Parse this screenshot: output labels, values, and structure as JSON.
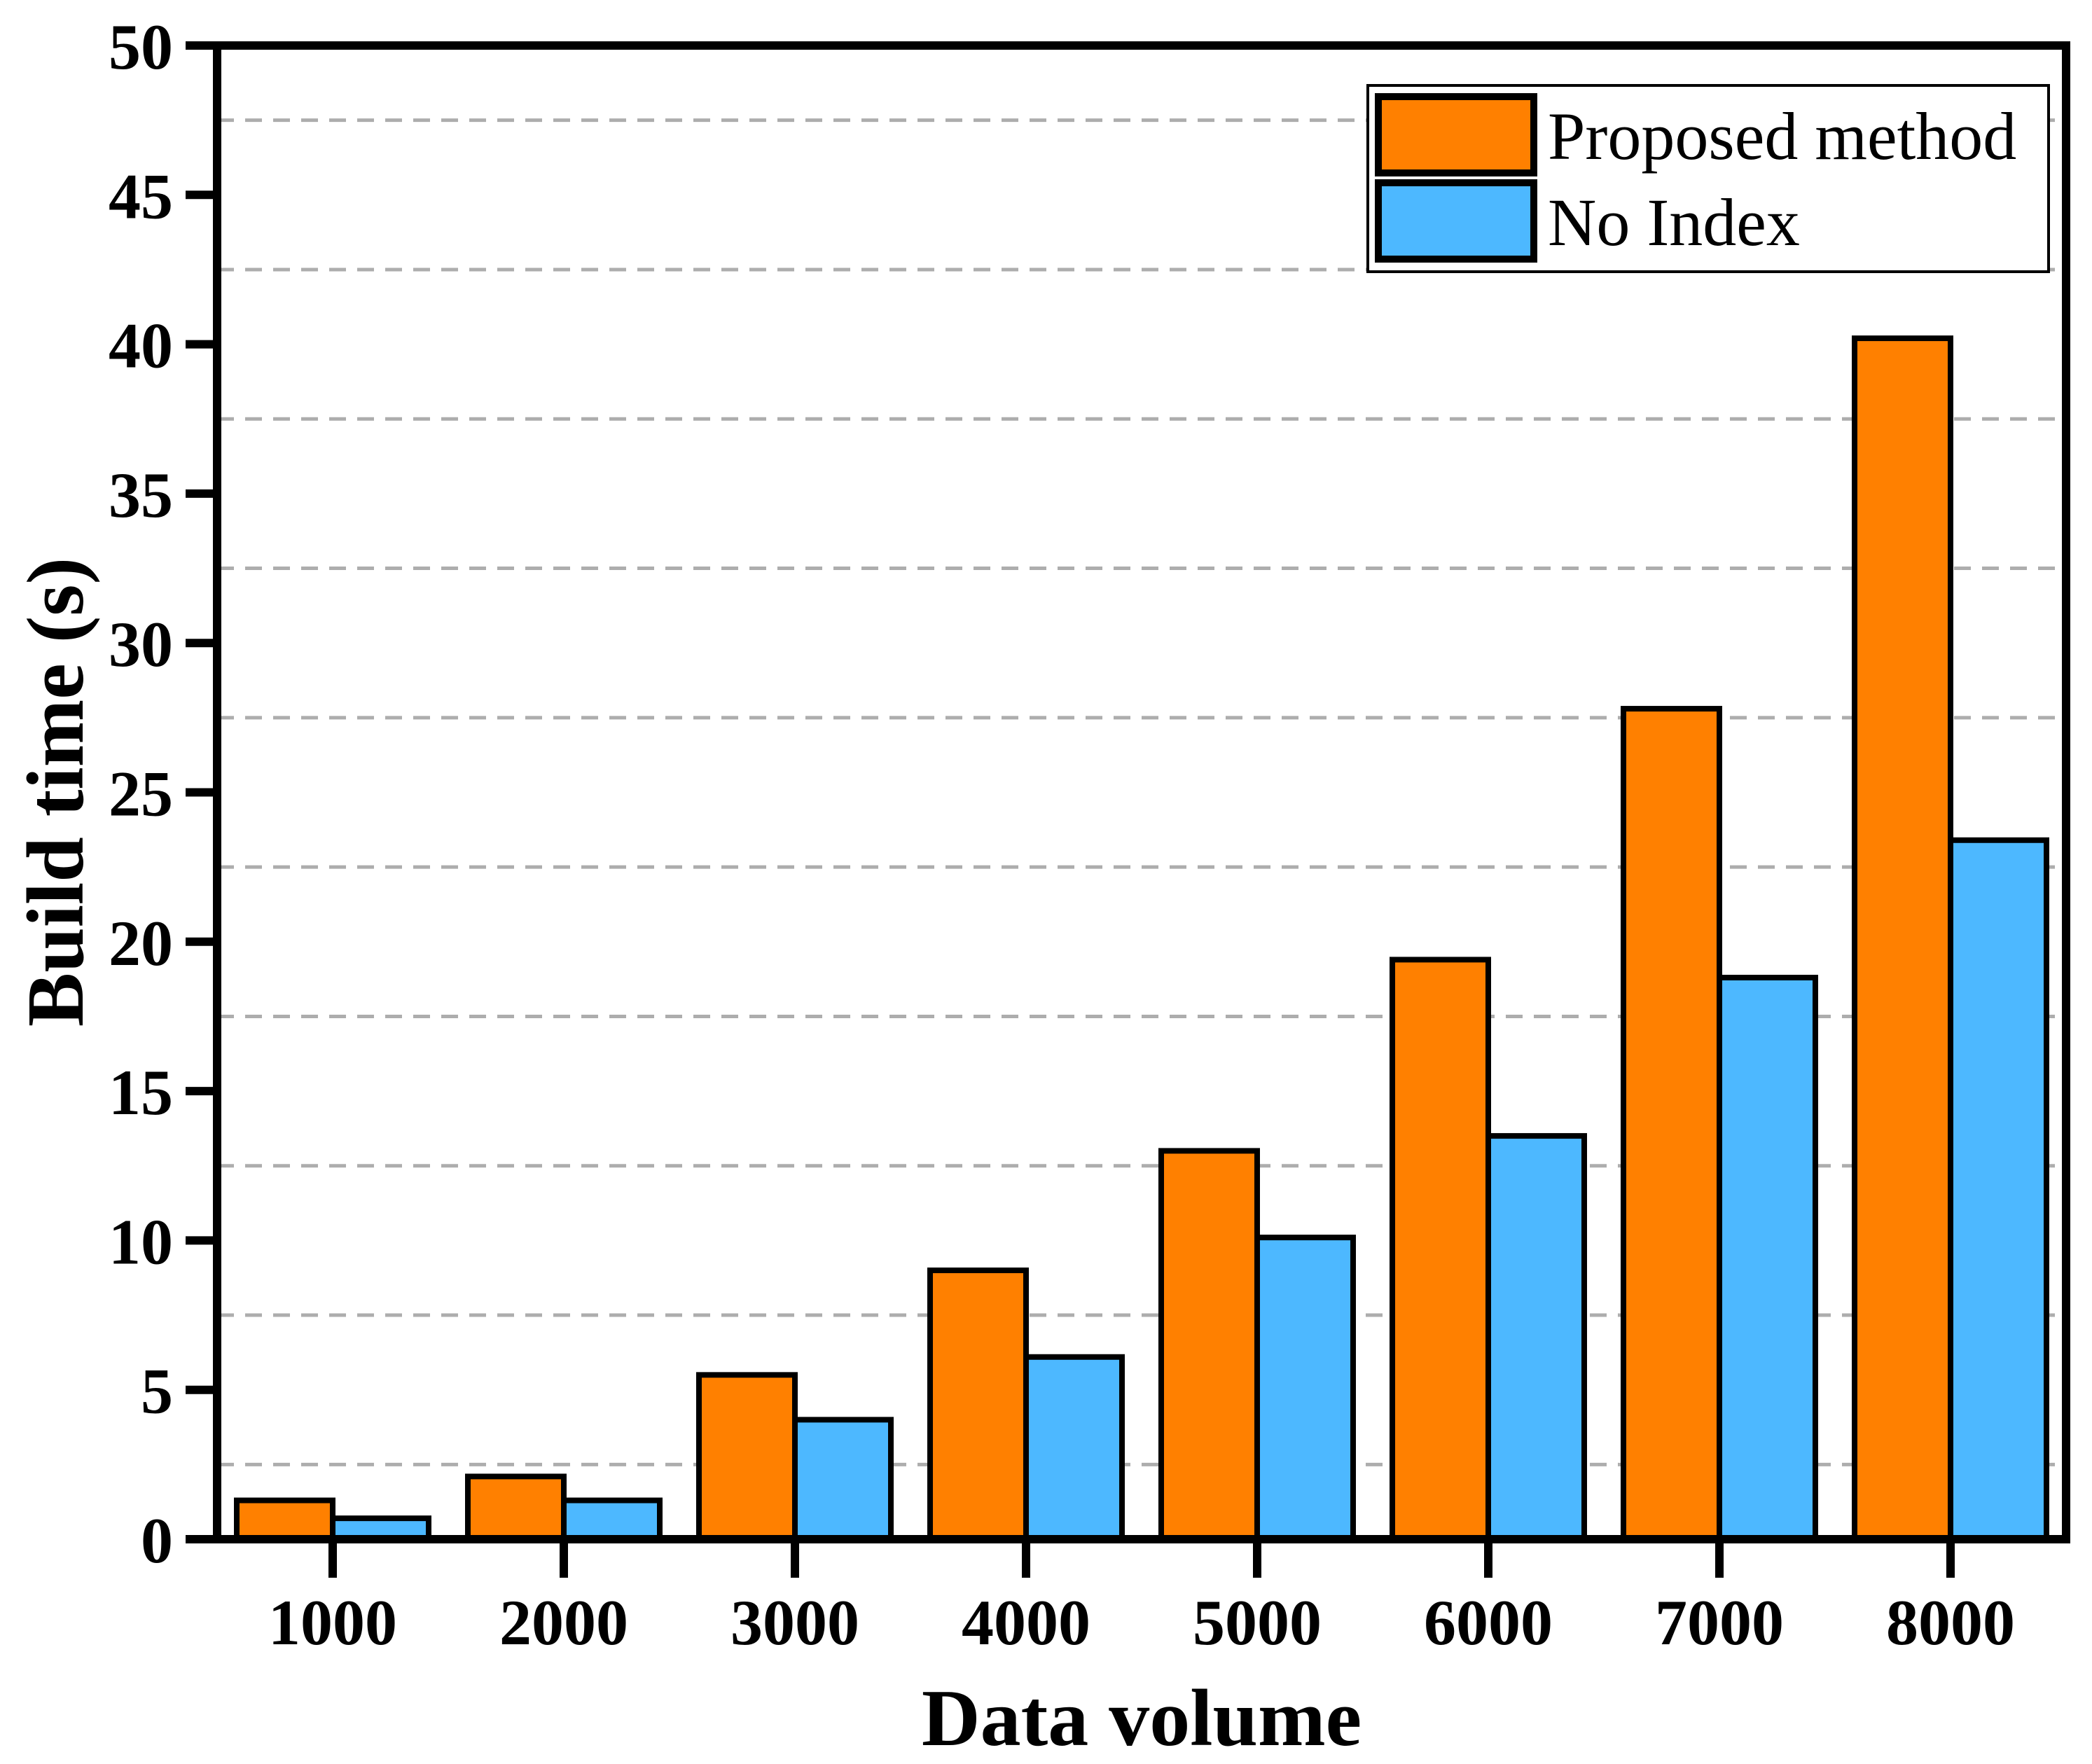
{
  "chart_data": {
    "type": "bar",
    "title": "",
    "xlabel": "Data volume",
    "ylabel": "Build time (s)",
    "categories": [
      "1000",
      "2000",
      "3000",
      "4000",
      "5000",
      "6000",
      "7000",
      "8000"
    ],
    "series": [
      {
        "name": "Proposed method",
        "color": "#FF8000",
        "values": [
          1.3,
          2.1,
          5.5,
          9.0,
          13.0,
          19.4,
          27.8,
          40.2
        ]
      },
      {
        "name": "No Index",
        "color": "#4DB8FF",
        "values": [
          0.7,
          1.3,
          4.0,
          6.1,
          10.1,
          13.5,
          18.8,
          23.4
        ]
      }
    ],
    "ylim": [
      0,
      50
    ],
    "ytick_step": 5,
    "ytick_labels": [
      "0",
      "5",
      "10",
      "15",
      "20",
      "25",
      "30",
      "35",
      "40",
      "45",
      "50"
    ],
    "grid": {
      "minor_gridlines": true,
      "minor_offset": 2.5,
      "minor_step": 5,
      "style": "dashed",
      "color": "#ADADAD"
    },
    "legend": {
      "position": "top-right",
      "border": true
    },
    "bar_edge_color": "#000000",
    "axis_color": "#000000",
    "background_color": "#FFFFFF"
  }
}
